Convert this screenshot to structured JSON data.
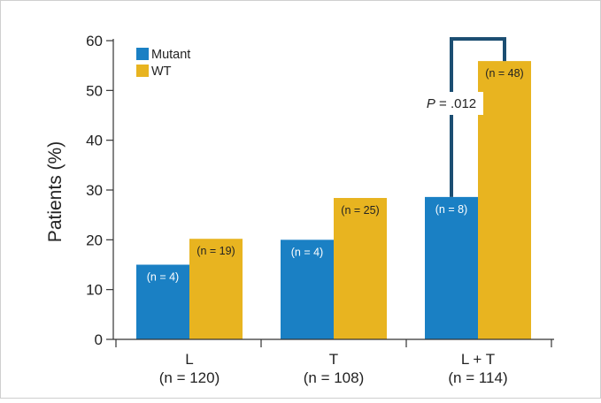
{
  "chart_data": {
    "type": "bar",
    "ylabel": "Patients (%)",
    "xlabel": "",
    "ylim": [
      0,
      60
    ],
    "yticks": [
      0,
      10,
      20,
      30,
      40,
      50,
      60
    ],
    "grid": false,
    "legend_position": "top-left",
    "categories": [
      {
        "name": "L",
        "sub": "(n = 120)"
      },
      {
        "name": "T",
        "sub": "(n = 108)"
      },
      {
        "name": "L + T",
        "sub": "(n = 114)"
      }
    ],
    "series": [
      {
        "name": "Mutant",
        "color": "#1a80c4",
        "values": [
          15,
          20,
          28.6
        ],
        "labels": [
          "(n = 4)",
          "(n = 4)",
          "(n = 8)"
        ]
      },
      {
        "name": "WT",
        "color": "#e8b420",
        "values": [
          20.2,
          28.4,
          55.9
        ],
        "labels": [
          "(n = 19)",
          "(n = 25)",
          "(n = 48)"
        ]
      }
    ],
    "annotation": {
      "category_index": 2,
      "p_label": "P",
      "p_value": "= .012",
      "bracket_top": 60,
      "color": "#1c4e72"
    }
  }
}
